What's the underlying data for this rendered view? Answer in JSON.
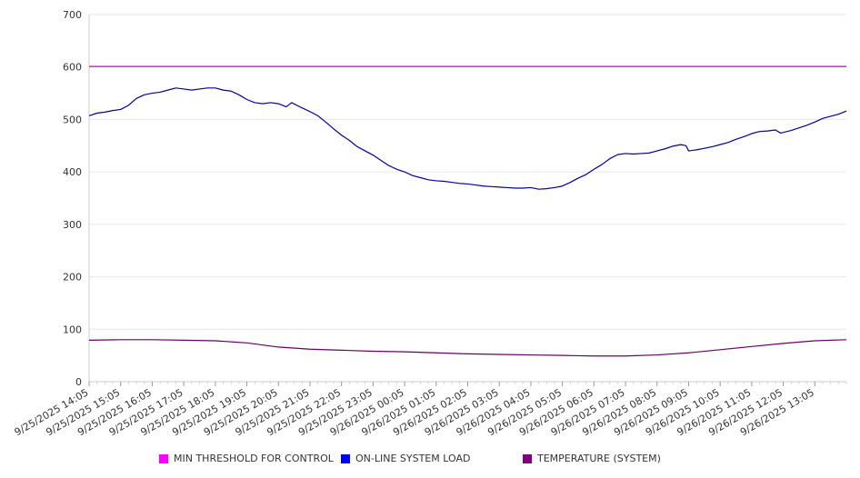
{
  "chart_data": {
    "type": "line",
    "title": "",
    "xlabel": "",
    "ylabel": "",
    "ylim": [
      0,
      700
    ],
    "yticks": [
      0,
      100,
      200,
      300,
      400,
      500,
      600,
      700
    ],
    "grid": true,
    "legend_position": "bottom",
    "x_tick_labels": [
      "9/25/2025 14:05",
      "9/25/2025 15:05",
      "9/25/2025 16:05",
      "9/25/2025 17:05",
      "9/25/2025 18:05",
      "9/25/2025 19:05",
      "9/25/2025 20:05",
      "9/25/2025 21:05",
      "9/25/2025 22:05",
      "9/25/2025 23:05",
      "9/26/2025 00:05",
      "9/26/2025 01:05",
      "9/26/2025 02:05",
      "9/26/2025 03:05",
      "9/26/2025 04:05",
      "9/26/2025 05:05",
      "9/26/2025 06:05",
      "9/26/2025 07:05",
      "9/26/2025 08:05",
      "9/26/2025 09:05",
      "9/26/2025 10:05",
      "9/26/2025 11:05",
      "9/26/2025 12:05",
      "9/26/2025 13:05"
    ],
    "x_range": [
      "9/25/2025 14:05",
      "9/26/2025 14:05"
    ],
    "series": [
      {
        "name": "MIN THRESHOLD FOR CONTROL",
        "color": "#d400d4",
        "legend_swatch": "#ff00ff",
        "points": [
          [
            "9/25/2025 14:05",
            601
          ],
          [
            "9/26/2025 14:05",
            601
          ]
        ]
      },
      {
        "name": "ON-LINE SYSTEM LOAD",
        "color": "#0000aa",
        "legend_swatch": "#0000ff",
        "points": [
          [
            "9/25/2025 14:05",
            507
          ],
          [
            "9/25/2025 14:20",
            512
          ],
          [
            "9/25/2025 14:35",
            514
          ],
          [
            "9/25/2025 14:50",
            517
          ],
          [
            "9/25/2025 15:05",
            519
          ],
          [
            "9/25/2025 15:20",
            527
          ],
          [
            "9/25/2025 15:35",
            540
          ],
          [
            "9/25/2025 15:50",
            547
          ],
          [
            "9/25/2025 16:05",
            550
          ],
          [
            "9/25/2025 16:20",
            552
          ],
          [
            "9/25/2025 16:35",
            556
          ],
          [
            "9/25/2025 16:50",
            560
          ],
          [
            "9/25/2025 17:05",
            558
          ],
          [
            "9/25/2025 17:20",
            556
          ],
          [
            "9/25/2025 17:35",
            558
          ],
          [
            "9/25/2025 17:50",
            560
          ],
          [
            "9/25/2025 18:05",
            560
          ],
          [
            "9/25/2025 18:20",
            556
          ],
          [
            "9/25/2025 18:35",
            554
          ],
          [
            "9/25/2025 18:50",
            547
          ],
          [
            "9/25/2025 19:05",
            538
          ],
          [
            "9/25/2025 19:20",
            532
          ],
          [
            "9/25/2025 19:35",
            530
          ],
          [
            "9/25/2025 19:50",
            532
          ],
          [
            "9/25/2025 20:05",
            530
          ],
          [
            "9/25/2025 20:20",
            524
          ],
          [
            "9/25/2025 20:30",
            532
          ],
          [
            "9/25/2025 20:50",
            522
          ],
          [
            "9/25/2025 21:05",
            515
          ],
          [
            "9/25/2025 21:20",
            507
          ],
          [
            "9/25/2025 21:35",
            495
          ],
          [
            "9/25/2025 21:50",
            482
          ],
          [
            "9/25/2025 22:05",
            470
          ],
          [
            "9/25/2025 22:20",
            460
          ],
          [
            "9/25/2025 22:35",
            448
          ],
          [
            "9/25/2025 22:50",
            440
          ],
          [
            "9/25/2025 23:05",
            432
          ],
          [
            "9/25/2025 23:20",
            422
          ],
          [
            "9/25/2025 23:35",
            412
          ],
          [
            "9/25/2025 23:50",
            405
          ],
          [
            "9/26/2025 00:05",
            400
          ],
          [
            "9/26/2025 00:20",
            393
          ],
          [
            "9/26/2025 00:35",
            389
          ],
          [
            "9/26/2025 00:50",
            385
          ],
          [
            "9/26/2025 01:05",
            383
          ],
          [
            "9/26/2025 01:20",
            382
          ],
          [
            "9/26/2025 01:35",
            380
          ],
          [
            "9/26/2025 01:50",
            378
          ],
          [
            "9/26/2025 02:05",
            377
          ],
          [
            "9/26/2025 02:20",
            375
          ],
          [
            "9/26/2025 02:35",
            373
          ],
          [
            "9/26/2025 02:50",
            372
          ],
          [
            "9/26/2025 03:05",
            371
          ],
          [
            "9/26/2025 03:20",
            370
          ],
          [
            "9/26/2025 03:35",
            369
          ],
          [
            "9/26/2025 03:50",
            369
          ],
          [
            "9/26/2025 04:05",
            370
          ],
          [
            "9/26/2025 04:20",
            367
          ],
          [
            "9/26/2025 04:35",
            368
          ],
          [
            "9/26/2025 04:50",
            370
          ],
          [
            "9/26/2025 05:05",
            373
          ],
          [
            "9/26/2025 05:20",
            380
          ],
          [
            "9/26/2025 05:35",
            388
          ],
          [
            "9/26/2025 05:50",
            395
          ],
          [
            "9/26/2025 06:05",
            405
          ],
          [
            "9/26/2025 06:20",
            414
          ],
          [
            "9/26/2025 06:35",
            425
          ],
          [
            "9/26/2025 06:50",
            433
          ],
          [
            "9/26/2025 07:05",
            435
          ],
          [
            "9/26/2025 07:20",
            434
          ],
          [
            "9/26/2025 07:35",
            435
          ],
          [
            "9/26/2025 07:50",
            436
          ],
          [
            "9/26/2025 08:05",
            440
          ],
          [
            "9/26/2025 08:20",
            444
          ],
          [
            "9/26/2025 08:35",
            449
          ],
          [
            "9/26/2025 08:50",
            452
          ],
          [
            "9/26/2025 09:00",
            450
          ],
          [
            "9/26/2025 09:05",
            440
          ],
          [
            "9/26/2025 09:20",
            442
          ],
          [
            "9/26/2025 09:35",
            445
          ],
          [
            "9/26/2025 09:50",
            448
          ],
          [
            "9/26/2025 10:05",
            452
          ],
          [
            "9/26/2025 10:20",
            456
          ],
          [
            "9/26/2025 10:35",
            462
          ],
          [
            "9/26/2025 10:50",
            467
          ],
          [
            "9/26/2025 11:05",
            473
          ],
          [
            "9/26/2025 11:20",
            477
          ],
          [
            "9/26/2025 11:35",
            478
          ],
          [
            "9/26/2025 11:50",
            480
          ],
          [
            "9/26/2025 12:00",
            474
          ],
          [
            "9/26/2025 12:20",
            479
          ],
          [
            "9/26/2025 12:35",
            484
          ],
          [
            "9/26/2025 12:50",
            489
          ],
          [
            "9/26/2025 13:05",
            495
          ],
          [
            "9/26/2025 13:20",
            502
          ],
          [
            "9/26/2025 13:35",
            506
          ],
          [
            "9/26/2025 13:50",
            510
          ],
          [
            "9/26/2025 14:05",
            516
          ]
        ]
      },
      {
        "name": "TEMPERATURE (SYSTEM)",
        "color": "#660066",
        "legend_swatch": "#800080",
        "points": [
          [
            "9/25/2025 14:05",
            79
          ],
          [
            "9/25/2025 15:05",
            80
          ],
          [
            "9/25/2025 16:05",
            80
          ],
          [
            "9/25/2025 17:05",
            79
          ],
          [
            "9/25/2025 18:05",
            78
          ],
          [
            "9/25/2025 19:05",
            74
          ],
          [
            "9/25/2025 20:05",
            66
          ],
          [
            "9/25/2025 21:05",
            62
          ],
          [
            "9/25/2025 22:05",
            60
          ],
          [
            "9/25/2025 23:05",
            58
          ],
          [
            "9/26/2025 00:05",
            57
          ],
          [
            "9/26/2025 01:05",
            55
          ],
          [
            "9/26/2025 02:05",
            53
          ],
          [
            "9/26/2025 03:05",
            52
          ],
          [
            "9/26/2025 04:05",
            51
          ],
          [
            "9/26/2025 05:05",
            50
          ],
          [
            "9/26/2025 06:05",
            49
          ],
          [
            "9/26/2025 07:05",
            49
          ],
          [
            "9/26/2025 08:05",
            51
          ],
          [
            "9/26/2025 09:05",
            55
          ],
          [
            "9/26/2025 10:05",
            61
          ],
          [
            "9/26/2025 11:05",
            67
          ],
          [
            "9/26/2025 12:05",
            73
          ],
          [
            "9/26/2025 13:05",
            78
          ],
          [
            "9/26/2025 14:05",
            80
          ]
        ]
      }
    ]
  }
}
